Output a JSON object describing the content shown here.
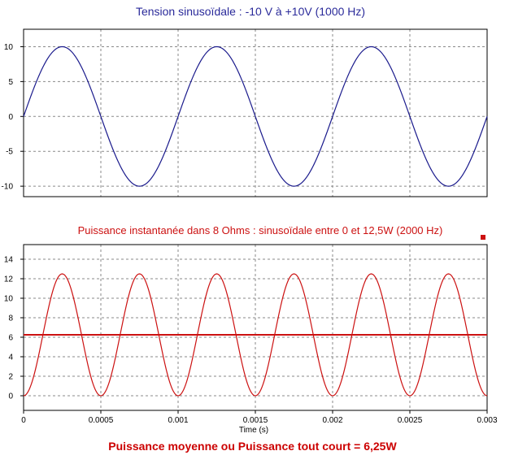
{
  "chart_data": [
    {
      "type": "line",
      "title": "Tension sinusoïdale : -10 V à +10V   (1000 Hz)",
      "xlabel": "",
      "ylabel": "",
      "xlim": [
        0,
        0.003
      ],
      "ylim": [
        -11.5,
        12.5
      ],
      "yticks": [
        10,
        5,
        0,
        -5,
        -10
      ],
      "ytick_labels": [
        "10",
        "5",
        "0",
        "-5",
        "-10"
      ],
      "grid": true,
      "series": [
        {
          "color": "#1a1a8c",
          "formula": "10*sin(2*pi*1000*t)",
          "x": [
            0,
            0.00025,
            0.0005,
            0.00075,
            0.001,
            0.00125,
            0.0015,
            0.00175,
            0.002,
            0.00225,
            0.0025,
            0.00275,
            0.003
          ],
          "values": [
            0,
            10,
            0,
            -10,
            0,
            10,
            0,
            -10,
            0,
            10,
            0,
            -10,
            0
          ]
        }
      ]
    },
    {
      "type": "line",
      "title": "Puissance instantanée dans 8 Ohms : sinusoïdale entre 0 et 12,5W (2000 Hz)",
      "xlabel": "Time (s)",
      "ylabel": "",
      "xlim": [
        0,
        0.003
      ],
      "ylim": [
        -1.5,
        15.5
      ],
      "yticks": [
        14,
        12,
        10,
        8,
        6,
        4,
        2,
        0
      ],
      "ytick_labels": [
        "14",
        "12",
        "10",
        "8",
        "6",
        "4",
        "2",
        "0"
      ],
      "xticks": [
        0,
        0.0005,
        0.001,
        0.0015,
        0.002,
        0.0025,
        0.003
      ],
      "xtick_labels": [
        "0",
        "0.0005",
        "0.001",
        "0.0015",
        "0.002",
        "0.0025",
        "0.003"
      ],
      "grid": true,
      "legend_marker_color": "#cc1111",
      "series": [
        {
          "color": "#cc1111",
          "formula": "12.5*sin^2(2*pi*1000*t)",
          "x": [
            0,
            0.00025,
            0.0005,
            0.00075,
            0.001,
            0.00125,
            0.0015,
            0.00175,
            0.002,
            0.00225,
            0.0025,
            0.00275,
            0.003
          ],
          "values": [
            0,
            12.5,
            0,
            12.5,
            0,
            12.5,
            0,
            12.5,
            0,
            12.5,
            0,
            12.5,
            0
          ]
        },
        {
          "color": "#cc1111",
          "type": "hline",
          "value": 6.25
        }
      ]
    }
  ],
  "footer": {
    "text": "Puissance moyenne ou Puissance tout court = 6,25W"
  }
}
